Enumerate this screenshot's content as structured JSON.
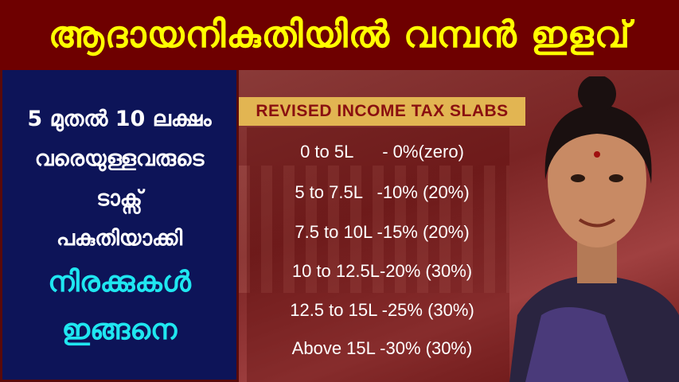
{
  "header": {
    "title": "ആദായനികുതിയിൽ വമ്പൻ ഇളവ്"
  },
  "left_panel": {
    "lines": [
      "5 മുതൽ 10 ലക്ഷം",
      "വരെയുള്ളവരുടെ",
      "ടാക്സ്",
      "പകുതിയാക്കി"
    ],
    "highlight_lines": [
      "നിരക്കുകൾ",
      "ഇങ്ങനെ"
    ]
  },
  "slabs": {
    "title": "REVISED INCOME TAX SLABS",
    "rows": [
      "0 to 5L      - 0%(zero)",
      "5 to 7.5L   -10% (20%)",
      "7.5 to 10L -15% (20%)",
      "10 to 12.5L-20% (30%)",
      "12.5 to 15L -25% (30%)",
      "Above 15L -30% (30%)"
    ]
  },
  "colors": {
    "header_bg": "#6e0000",
    "header_text": "#ffff00",
    "left_bg": "#0d1458",
    "highlight_text": "#1fe6f0",
    "slab_title_bg": "#e2b552"
  }
}
